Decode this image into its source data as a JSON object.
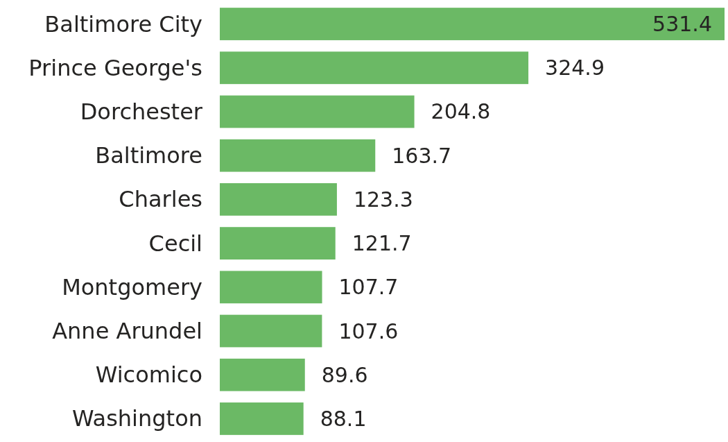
{
  "chart_data": {
    "type": "bar",
    "orientation": "horizontal",
    "categories": [
      "Baltimore City",
      "Prince George's",
      "Dorchester",
      "Baltimore",
      "Charles",
      "Cecil",
      "Montgomery",
      "Anne Arundel",
      "Wicomico",
      "Washington"
    ],
    "values": [
      531.4,
      324.9,
      204.8,
      163.7,
      123.3,
      121.7,
      107.7,
      107.6,
      89.6,
      88.1
    ],
    "color": "#6bb965",
    "data_labels": true
  }
}
